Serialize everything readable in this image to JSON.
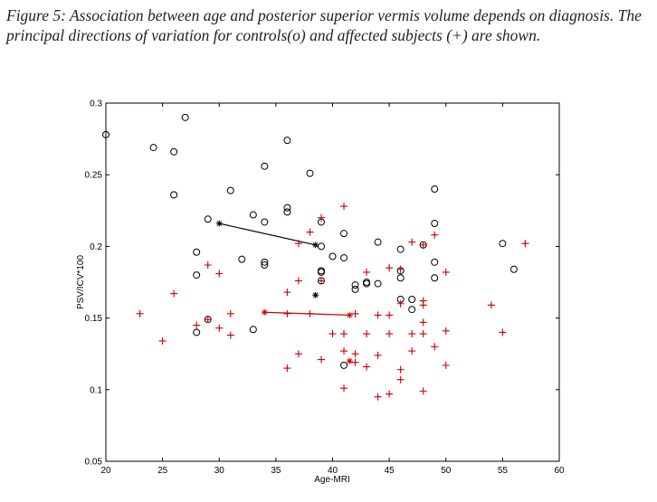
{
  "caption": "Figure 5: Association between age and posterior superior vermis volume depends on diagnosis. The principal directions of variation for controls(o) and affected subjects (+) are shown.",
  "chart_data": {
    "type": "scatter",
    "xlabel": "Age-MRI",
    "ylabel": "PSV/ICV*100",
    "xlim": [
      20,
      60
    ],
    "ylim": [
      0.05,
      0.3
    ],
    "xticks": [
      "20",
      "25",
      "30",
      "35",
      "40",
      "45",
      "50",
      "55",
      "60"
    ],
    "yticks": [
      "0.05",
      "0.1",
      "0.15",
      "0.2",
      "0.25",
      "0.3"
    ],
    "grid": false,
    "colors": {
      "controls": "#000000",
      "affected": "#cc0000"
    },
    "series": [
      {
        "marker": "o",
        "color": "#000000",
        "points": [
          [
            20,
            0.278
          ],
          [
            24.2,
            0.269
          ],
          [
            26,
            0.266
          ],
          [
            27,
            0.29
          ],
          [
            26,
            0.236
          ],
          [
            29,
            0.219
          ],
          [
            28,
            0.196
          ],
          [
            28,
            0.18
          ],
          [
            28,
            0.14
          ],
          [
            29,
            0.149
          ],
          [
            31,
            0.239
          ],
          [
            32,
            0.191
          ],
          [
            33,
            0.222
          ],
          [
            33,
            0.142
          ],
          [
            34,
            0.256
          ],
          [
            34,
            0.217
          ],
          [
            34,
            0.189
          ],
          [
            34,
            0.187
          ],
          [
            36,
            0.274
          ],
          [
            36,
            0.227
          ],
          [
            36,
            0.224
          ],
          [
            38,
            0.251
          ],
          [
            39,
            0.217
          ],
          [
            39,
            0.2
          ],
          [
            39,
            0.183
          ],
          [
            39,
            0.182
          ],
          [
            39,
            0.176
          ],
          [
            40,
            0.193
          ],
          [
            41,
            0.209
          ],
          [
            41,
            0.192
          ],
          [
            41,
            0.117
          ],
          [
            42,
            0.173
          ],
          [
            42,
            0.17
          ],
          [
            43,
            0.175
          ],
          [
            43,
            0.174
          ],
          [
            44,
            0.203
          ],
          [
            44,
            0.174
          ],
          [
            46,
            0.198
          ],
          [
            46,
            0.183
          ],
          [
            46,
            0.178
          ],
          [
            46,
            0.163
          ],
          [
            47,
            0.163
          ],
          [
            47,
            0.156
          ],
          [
            48,
            0.201
          ],
          [
            49,
            0.24
          ],
          [
            49,
            0.216
          ],
          [
            49,
            0.189
          ],
          [
            49,
            0.178
          ],
          [
            55,
            0.202
          ],
          [
            56,
            0.184
          ]
        ]
      },
      {
        "marker": "+",
        "color": "#cc0000",
        "points": [
          [
            23,
            0.153
          ],
          [
            25,
            0.134
          ],
          [
            26,
            0.167
          ],
          [
            28,
            0.145
          ],
          [
            29,
            0.187
          ],
          [
            29,
            0.149
          ],
          [
            30,
            0.181
          ],
          [
            30,
            0.143
          ],
          [
            31,
            0.153
          ],
          [
            31,
            0.138
          ],
          [
            36,
            0.168
          ],
          [
            36,
            0.153
          ],
          [
            36,
            0.115
          ],
          [
            37,
            0.202
          ],
          [
            37,
            0.176
          ],
          [
            37,
            0.125
          ],
          [
            38,
            0.21
          ],
          [
            38,
            0.153
          ],
          [
            39,
            0.22
          ],
          [
            39,
            0.176
          ],
          [
            39,
            0.121
          ],
          [
            40,
            0.139
          ],
          [
            41,
            0.228
          ],
          [
            41,
            0.139
          ],
          [
            41,
            0.127
          ],
          [
            41,
            0.101
          ],
          [
            42,
            0.153
          ],
          [
            42,
            0.125
          ],
          [
            42,
            0.119
          ],
          [
            43,
            0.182
          ],
          [
            43,
            0.139
          ],
          [
            43,
            0.116
          ],
          [
            44,
            0.152
          ],
          [
            44,
            0.124
          ],
          [
            44,
            0.095
          ],
          [
            45,
            0.185
          ],
          [
            45,
            0.152
          ],
          [
            45,
            0.139
          ],
          [
            45,
            0.097
          ],
          [
            46,
            0.184
          ],
          [
            46,
            0.16
          ],
          [
            46,
            0.114
          ],
          [
            46,
            0.107
          ],
          [
            47,
            0.203
          ],
          [
            47,
            0.139
          ],
          [
            47,
            0.127
          ],
          [
            48,
            0.201
          ],
          [
            48,
            0.162
          ],
          [
            48,
            0.159
          ],
          [
            48,
            0.147
          ],
          [
            48,
            0.139
          ],
          [
            48,
            0.099
          ],
          [
            49,
            0.208
          ],
          [
            49,
            0.13
          ],
          [
            50,
            0.182
          ],
          [
            50,
            0.141
          ],
          [
            50,
            0.117
          ],
          [
            54,
            0.159
          ],
          [
            55,
            0.14
          ],
          [
            57,
            0.202
          ]
        ]
      }
    ],
    "lines": [
      {
        "color": "#000000",
        "points": [
          [
            30,
            0.216
          ],
          [
            38.5,
            0.201
          ]
        ]
      },
      {
        "color": "#cc0000",
        "points": [
          [
            34,
            0.154
          ],
          [
            41.5,
            0.152
          ]
        ]
      }
    ],
    "star_points": [
      {
        "color": "#000000",
        "x": 38.5,
        "y": 0.166
      },
      {
        "color": "#cc0000",
        "x": 41.5,
        "y": 0.12
      }
    ]
  }
}
